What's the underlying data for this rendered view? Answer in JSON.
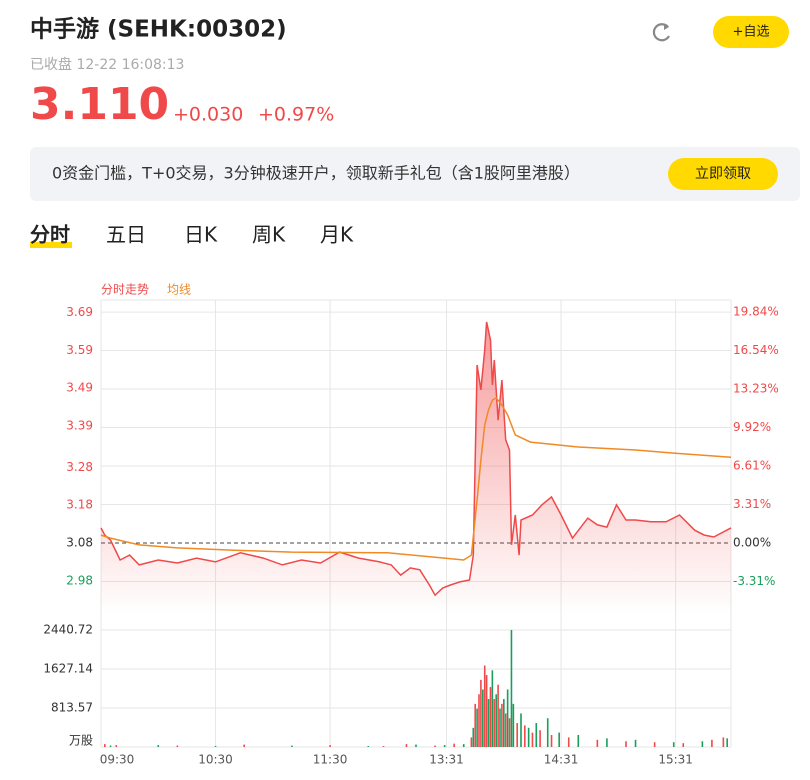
{
  "header": {
    "title": "中手游 (SEHK:00302)",
    "status": "已收盘 12-22 16:08:13",
    "price": "3.110",
    "change": "+0.030",
    "change_pct": "+0.97%",
    "watch_button": "+自选"
  },
  "banner": {
    "text": "0资金门槛，T+0交易，3分钟极速开户，领取新手礼包（含1股阿里港股）",
    "button": "立即领取"
  },
  "tabs": [
    "分时",
    "五日",
    "日K",
    "周K",
    "月K"
  ],
  "chart_data": [
    {
      "type": "line",
      "xlim": [
        0,
        330
      ],
      "ylim": [
        2.8895,
        3.723
      ],
      "yticks": [
        3.69,
        3.59,
        3.49,
        3.39,
        3.28,
        3.18,
        3.08,
        2.98
      ],
      "y2lim": [
        -6.19,
        20.88
      ],
      "y2ticks": [
        {
          "value": 19.84,
          "label": "19.84%"
        },
        {
          "value": 16.54,
          "label": "16.54%"
        },
        {
          "value": 13.23,
          "label": "13.23%"
        },
        {
          "value": 9.92,
          "label": "9.92%"
        },
        {
          "value": 6.61,
          "label": "6.61%"
        },
        {
          "value": 3.31,
          "label": "3.31%"
        },
        {
          "value": 0,
          "label": "0.00%"
        },
        {
          "value": -3.31,
          "label": "-3.31%"
        }
      ],
      "series": [
        {
          "name": "分时走势",
          "color": "#f0494a",
          "x": [
            0,
            2,
            5,
            10,
            15,
            20,
            30,
            40,
            50,
            60,
            73,
            85,
            95,
            105,
            115,
            125,
            135,
            146,
            152,
            157,
            162,
            167,
            172,
            175,
            179,
            183,
            188,
            193,
            195,
            197,
            199,
            201,
            202,
            204,
            205,
            206,
            208,
            210,
            212,
            214,
            215,
            217,
            219,
            220,
            226,
            231,
            236,
            241,
            247,
            255,
            260,
            265,
            270,
            275,
            280,
            288,
            296,
            303,
            311,
            316,
            321,
            330
          ],
          "values": [
            3.12,
            3.101,
            3.088,
            3.035,
            3.048,
            3.022,
            3.035,
            3.027,
            3.04,
            3.03,
            3.054,
            3.04,
            3.022,
            3.035,
            3.027,
            3.056,
            3.04,
            3.03,
            3.022,
            2.995,
            3.014,
            3.009,
            2.969,
            2.942,
            2.961,
            2.969,
            2.977,
            2.982,
            3.048,
            3.551,
            3.485,
            3.591,
            3.665,
            3.617,
            3.498,
            3.564,
            3.405,
            3.511,
            3.353,
            3.326,
            3.075,
            3.154,
            3.048,
            3.141,
            3.154,
            3.181,
            3.202,
            3.154,
            3.093,
            3.146,
            3.128,
            3.122,
            3.181,
            3.141,
            3.141,
            3.136,
            3.136,
            3.154,
            3.114,
            3.101,
            3.096,
            3.12
          ]
        },
        {
          "name": "均线",
          "color": "#f08a24",
          "x": [
            0,
            5,
            20,
            40,
            70,
            100,
            150,
            180,
            190,
            194,
            197,
            199,
            201,
            203,
            205,
            207,
            210,
            213,
            217,
            225,
            250,
            280,
            300,
            330
          ],
          "values": [
            3.101,
            3.093,
            3.075,
            3.067,
            3.061,
            3.056,
            3.054,
            3.04,
            3.035,
            3.048,
            3.194,
            3.3,
            3.392,
            3.432,
            3.458,
            3.464,
            3.445,
            3.419,
            3.366,
            3.347,
            3.334,
            3.326,
            3.318,
            3.307
          ]
        }
      ]
    },
    {
      "type": "bar",
      "xlim": [
        0,
        330
      ],
      "ylim": [
        0,
        2440.72
      ],
      "xticks": [
        {
          "value": 0,
          "label": "09:30"
        },
        {
          "value": 60,
          "label": "10:30"
        },
        {
          "value": 120,
          "label": "11:30"
        },
        {
          "value": 181,
          "label": "13:31"
        },
        {
          "value": 241,
          "label": "14:31"
        },
        {
          "value": 301,
          "label": "15:31"
        }
      ],
      "yticks": [
        2440.72,
        1627.14,
        813.57,
        {
          "value": 0,
          "label": "万股"
        }
      ],
      "series": [
        {
          "color": "#f0494a",
          "x": [
            2,
            8,
            40,
            75,
            120,
            148,
            160,
            175,
            185,
            194,
            196,
            198,
            199,
            201,
            202,
            204,
            206,
            208,
            210,
            212,
            214,
            218,
            222,
            226,
            230,
            236,
            245,
            260,
            275,
            290,
            305,
            320,
            326
          ],
          "values": [
            60,
            40,
            30,
            50,
            40,
            20,
            60,
            30,
            70,
            200,
            900,
            1100,
            1400,
            1700,
            1500,
            1250,
            1000,
            1300,
            900,
            700,
            600,
            500,
            450,
            300,
            350,
            250,
            200,
            150,
            120,
            100,
            80,
            150,
            200
          ]
        },
        {
          "color": "#1a9e5c",
          "x": [
            5,
            30,
            60,
            100,
            140,
            165,
            180,
            190,
            195,
            197,
            200,
            203,
            205,
            207,
            209,
            211,
            213,
            215,
            216,
            220,
            224,
            228,
            234,
            240,
            250,
            265,
            280,
            300,
            315,
            328
          ],
          "values": [
            30,
            40,
            20,
            30,
            20,
            50,
            40,
            60,
            400,
            800,
            1200,
            1000,
            1600,
            1100,
            800,
            1000,
            1200,
            2440.72,
            900,
            700,
            400,
            500,
            600,
            300,
            250,
            180,
            150,
            100,
            120,
            180
          ]
        }
      ]
    }
  ]
}
